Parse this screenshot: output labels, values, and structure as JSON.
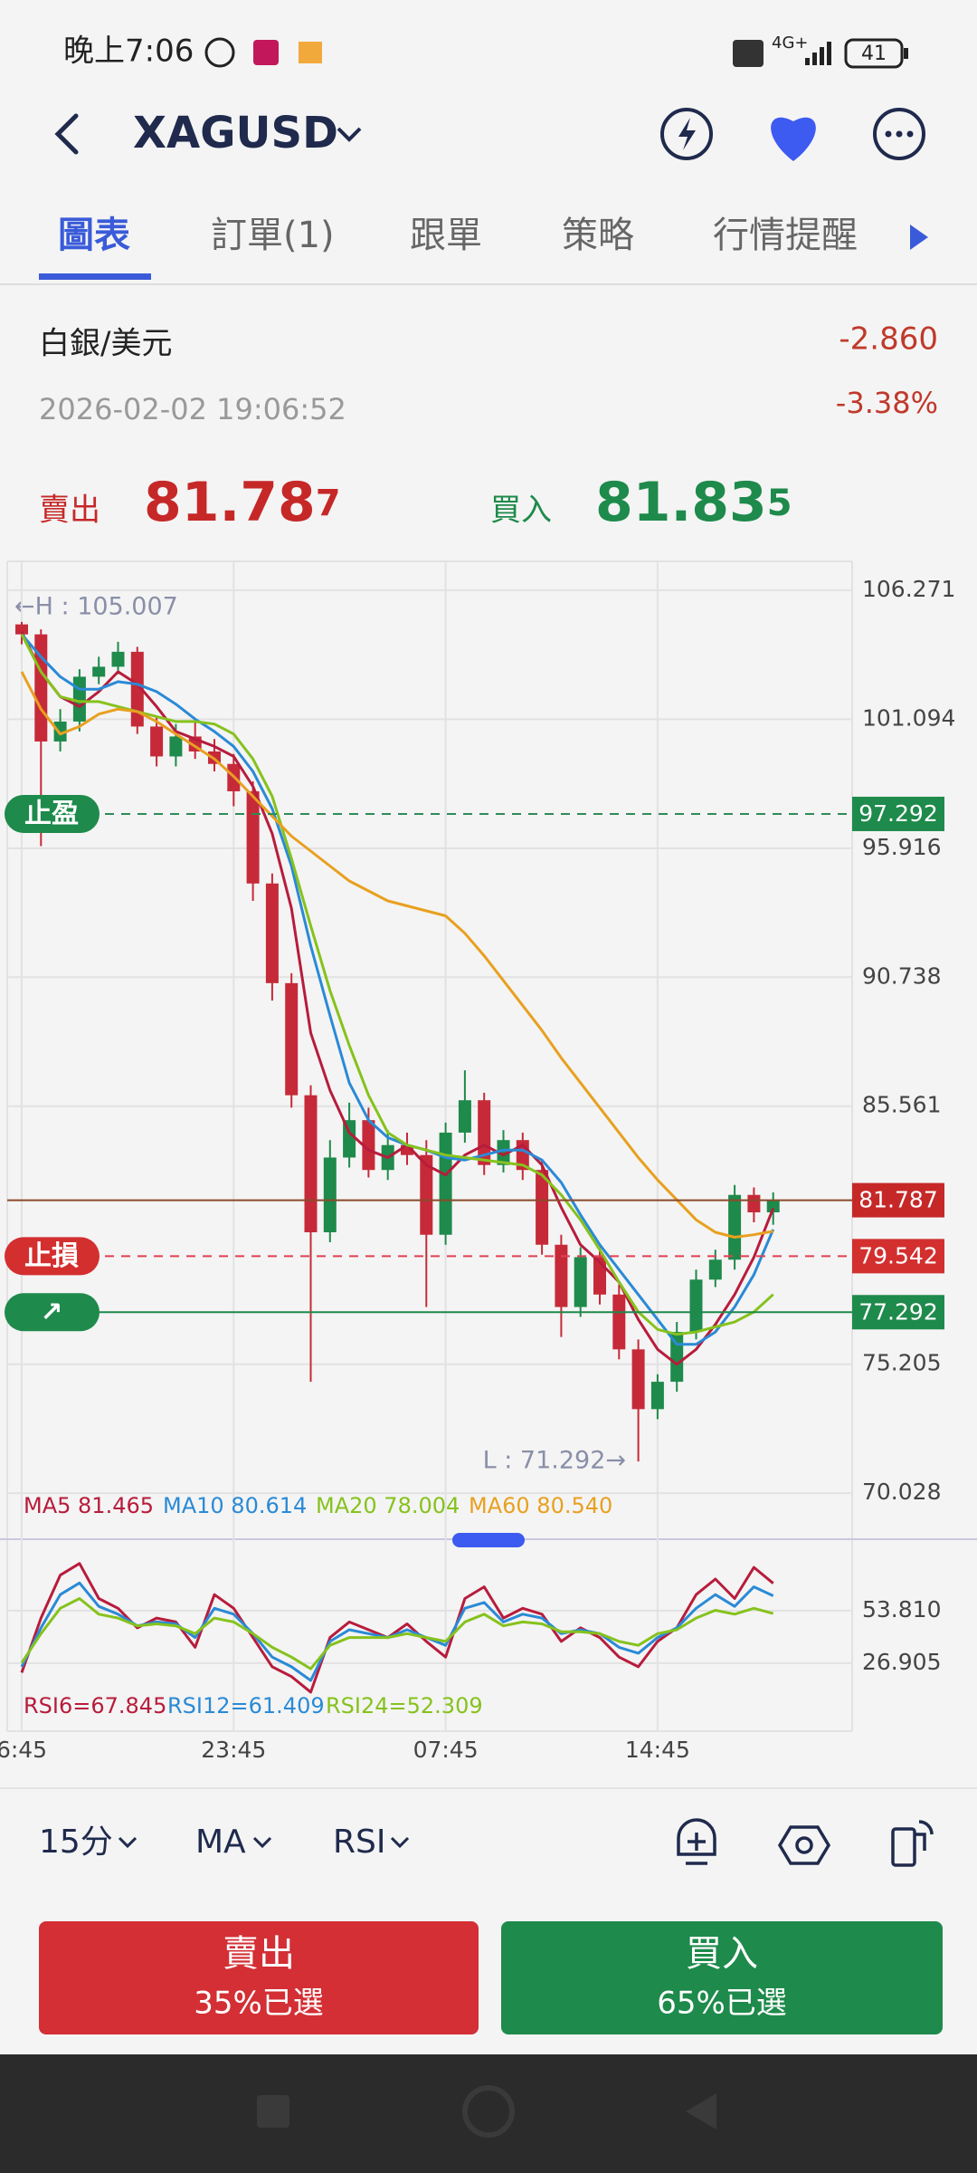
{
  "status_bar": {
    "time": "晚上7:06",
    "network": "4G+",
    "battery": "41"
  },
  "header": {
    "symbol": "XAGUSD"
  },
  "tabs": [
    "圖表",
    "訂單(1)",
    "跟單",
    "策略",
    "行情提醒"
  ],
  "quote": {
    "name": "白銀/美元",
    "datetime": "2026-02-02 19:06:52",
    "change": "-2.860",
    "change_pct": "-3.38%",
    "sell_label": "賣出",
    "sell_main": "81.78",
    "sell_pip": "7",
    "buy_label": "買入",
    "buy_main": "81.83",
    "buy_pip": "5"
  },
  "chart_data": [
    {
      "type": "candlestick",
      "open": [
        104.9,
        104.5,
        100.2,
        101.0,
        102.8,
        103.2,
        103.8,
        100.8,
        99.6,
        100.4,
        99.8,
        99.3,
        98.2,
        94.5,
        90.5,
        86.0,
        80.5,
        83.5,
        85.0,
        83.0,
        84.0,
        83.6,
        80.4,
        84.5,
        85.8,
        83.2,
        84.2,
        83.0,
        80.0,
        77.5,
        79.5,
        78.0,
        75.8,
        73.4,
        74.5,
        76.5,
        78.6,
        79.4,
        82.0,
        81.3
      ],
      "high": [
        105.0,
        104.7,
        101.5,
        103.1,
        103.6,
        104.2,
        104.0,
        101.2,
        100.9,
        101.1,
        100.3,
        99.7,
        98.6,
        94.9,
        90.9,
        86.4,
        84.2,
        85.7,
        85.5,
        84.6,
        84.5,
        84.2,
        84.9,
        87.0,
        86.1,
        84.6,
        84.5,
        83.4,
        80.4,
        79.9,
        79.9,
        78.4,
        76.2,
        74.8,
        76.9,
        79.0,
        79.8,
        82.4,
        82.3,
        82.1
      ],
      "low": [
        104.1,
        96.0,
        99.8,
        100.6,
        102.5,
        102.9,
        100.5,
        99.2,
        99.2,
        99.5,
        99.0,
        97.6,
        93.8,
        89.8,
        85.5,
        74.5,
        80.1,
        83.1,
        82.7,
        82.6,
        83.2,
        77.5,
        80.0,
        84.1,
        82.8,
        82.9,
        82.6,
        79.6,
        76.3,
        77.1,
        77.6,
        75.4,
        71.3,
        73.0,
        74.1,
        76.2,
        78.3,
        79.0,
        80.9,
        80.8
      ],
      "close": [
        104.5,
        100.2,
        101.0,
        102.8,
        103.2,
        103.8,
        100.8,
        99.6,
        100.4,
        99.8,
        99.3,
        98.2,
        94.5,
        90.5,
        86.0,
        80.5,
        83.5,
        85.0,
        83.0,
        84.0,
        83.6,
        80.4,
        84.5,
        85.8,
        83.2,
        84.2,
        83.0,
        80.0,
        77.5,
        79.5,
        78.0,
        75.8,
        73.4,
        74.5,
        76.5,
        78.6,
        79.4,
        82.0,
        81.3,
        81.8
      ],
      "up_color": "#1e8a4b",
      "down_color": "#c62a38",
      "series": [
        {
          "name": "MA5 81.465",
          "color": "#b71c3c",
          "values": [
            104.6,
            103.0,
            102.0,
            101.6,
            102.2,
            103.0,
            102.5,
            101.6,
            100.6,
            100.3,
            100.0,
            99.6,
            98.4,
            96.5,
            93.5,
            88.5,
            86.2,
            84.5,
            83.8,
            83.5,
            84.0,
            83.2,
            82.8,
            83.6,
            84.0,
            83.6,
            84.0,
            83.2,
            81.5,
            80.0,
            79.3,
            78.5,
            77.0,
            75.8,
            75.2,
            75.8,
            76.8,
            78.0,
            79.5,
            81.465
          ]
        },
        {
          "name": "MA10 80.614",
          "color": "#2a8ad6",
          "values": [
            104.5,
            103.6,
            102.8,
            102.3,
            102.3,
            102.6,
            102.5,
            102.2,
            101.7,
            101.1,
            100.6,
            100.0,
            99.0,
            97.5,
            95.2,
            92.0,
            89.2,
            86.5,
            85.0,
            84.3,
            84.0,
            83.8,
            83.5,
            83.4,
            83.6,
            83.8,
            83.8,
            83.4,
            82.5,
            81.2,
            80.0,
            79.0,
            78.0,
            77.0,
            76.0,
            76.0,
            76.5,
            77.5,
            78.8,
            80.614
          ]
        },
        {
          "name": "MA20 78.004",
          "color": "#86c21d",
          "values": [
            104.5,
            103.0,
            102.0,
            101.8,
            101.8,
            101.6,
            101.4,
            101.2,
            101.0,
            101.0,
            100.9,
            100.5,
            99.5,
            98.0,
            95.5,
            92.8,
            90.2,
            88.0,
            86.0,
            84.5,
            84.0,
            83.8,
            83.6,
            83.5,
            83.4,
            83.3,
            83.2,
            82.8,
            82.0,
            81.0,
            79.8,
            78.5,
            77.3,
            76.6,
            76.4,
            76.5,
            76.7,
            76.9,
            77.3,
            78.004
          ]
        },
        {
          "name": "MA60 80.540",
          "color": "#e8a020",
          "values": [
            103.0,
            101.5,
            100.5,
            100.8,
            101.3,
            101.5,
            101.4,
            101.0,
            100.5,
            100.0,
            99.5,
            98.8,
            98.0,
            97.2,
            96.4,
            95.8,
            95.2,
            94.6,
            94.2,
            93.8,
            93.6,
            93.4,
            93.2,
            92.5,
            91.6,
            90.6,
            89.6,
            88.6,
            87.5,
            86.5,
            85.5,
            84.5,
            83.5,
            82.6,
            81.8,
            81.0,
            80.5,
            80.3,
            80.4,
            80.54
          ]
        }
      ],
      "ylim": [
        69.27,
        107.43
      ],
      "yticks": [
        106.271,
        101.094,
        95.916,
        90.738,
        85.561,
        75.205,
        70.028
      ],
      "grid": true,
      "levels": [
        {
          "label": "止盈",
          "value": 97.292,
          "color": "#2e8b57",
          "label_color": "#1e8a4b",
          "style": "dashed"
        },
        {
          "value": 81.787,
          "color": "#8b4a2b",
          "label_color": "#c62828",
          "style": "solid"
        },
        {
          "label": "止損",
          "value": 79.542,
          "color": "#e04050",
          "label_color": "#d32f2f",
          "style": "dashed"
        },
        {
          "label": "↗",
          "value": 77.292,
          "color": "#1e8a4b",
          "label_color": "#1e8a4b",
          "style": "solid"
        }
      ],
      "annotations": [
        "←H : 105.007",
        "L : 71.292→"
      ]
    },
    {
      "type": "line",
      "categories": [
        "6:45",
        null,
        null,
        null,
        null,
        null,
        null,
        null,
        null,
        null,
        null,
        "23:45",
        null,
        null,
        null,
        null,
        null,
        null,
        null,
        null,
        null,
        null,
        "07:45",
        null,
        null,
        null,
        null,
        null,
        null,
        null,
        null,
        null,
        null,
        "14:45",
        null,
        null,
        null,
        null,
        null,
        null
      ],
      "series": [
        {
          "name": "RSI6=67.845",
          "color": "#b71c3c",
          "values": [
            22,
            50,
            72,
            78,
            60,
            55,
            45,
            50,
            48,
            35,
            62,
            55,
            40,
            25,
            20,
            12,
            40,
            48,
            44,
            40,
            47,
            38,
            30,
            60,
            66,
            50,
            55,
            52,
            38,
            45,
            40,
            30,
            25,
            38,
            45,
            62,
            70,
            60,
            76,
            67.845
          ]
        },
        {
          "name": "RSI12=61.409",
          "color": "#2a8ad6",
          "values": [
            25,
            45,
            62,
            68,
            56,
            52,
            46,
            48,
            47,
            40,
            55,
            52,
            42,
            30,
            25,
            18,
            38,
            44,
            42,
            40,
            44,
            40,
            36,
            55,
            58,
            48,
            52,
            50,
            42,
            44,
            42,
            35,
            32,
            40,
            45,
            55,
            62,
            56,
            66,
            61.409
          ]
        },
        {
          "name": "RSI24=52.309",
          "color": "#86c21d",
          "values": [
            27,
            42,
            55,
            60,
            52,
            50,
            46,
            47,
            46,
            42,
            50,
            48,
            42,
            35,
            30,
            24,
            36,
            40,
            40,
            40,
            42,
            40,
            38,
            48,
            52,
            46,
            48,
            47,
            43,
            43,
            42,
            38,
            36,
            42,
            44,
            50,
            54,
            52,
            55,
            52.309
          ]
        }
      ],
      "ylim": [
        -8,
        84.4
      ],
      "yticks": [
        {
          "value": 53.81,
          "label": "53.810"
        },
        26.905
      ],
      "grid": true
    }
  ],
  "toolbar": {
    "interval": "15分",
    "indicator": "MA",
    "sub_indicator": "RSI"
  },
  "actions": {
    "sell": {
      "label": "賣出",
      "ratio": "35%已選"
    },
    "buy": {
      "label": "買入",
      "ratio": "65%已選"
    }
  }
}
